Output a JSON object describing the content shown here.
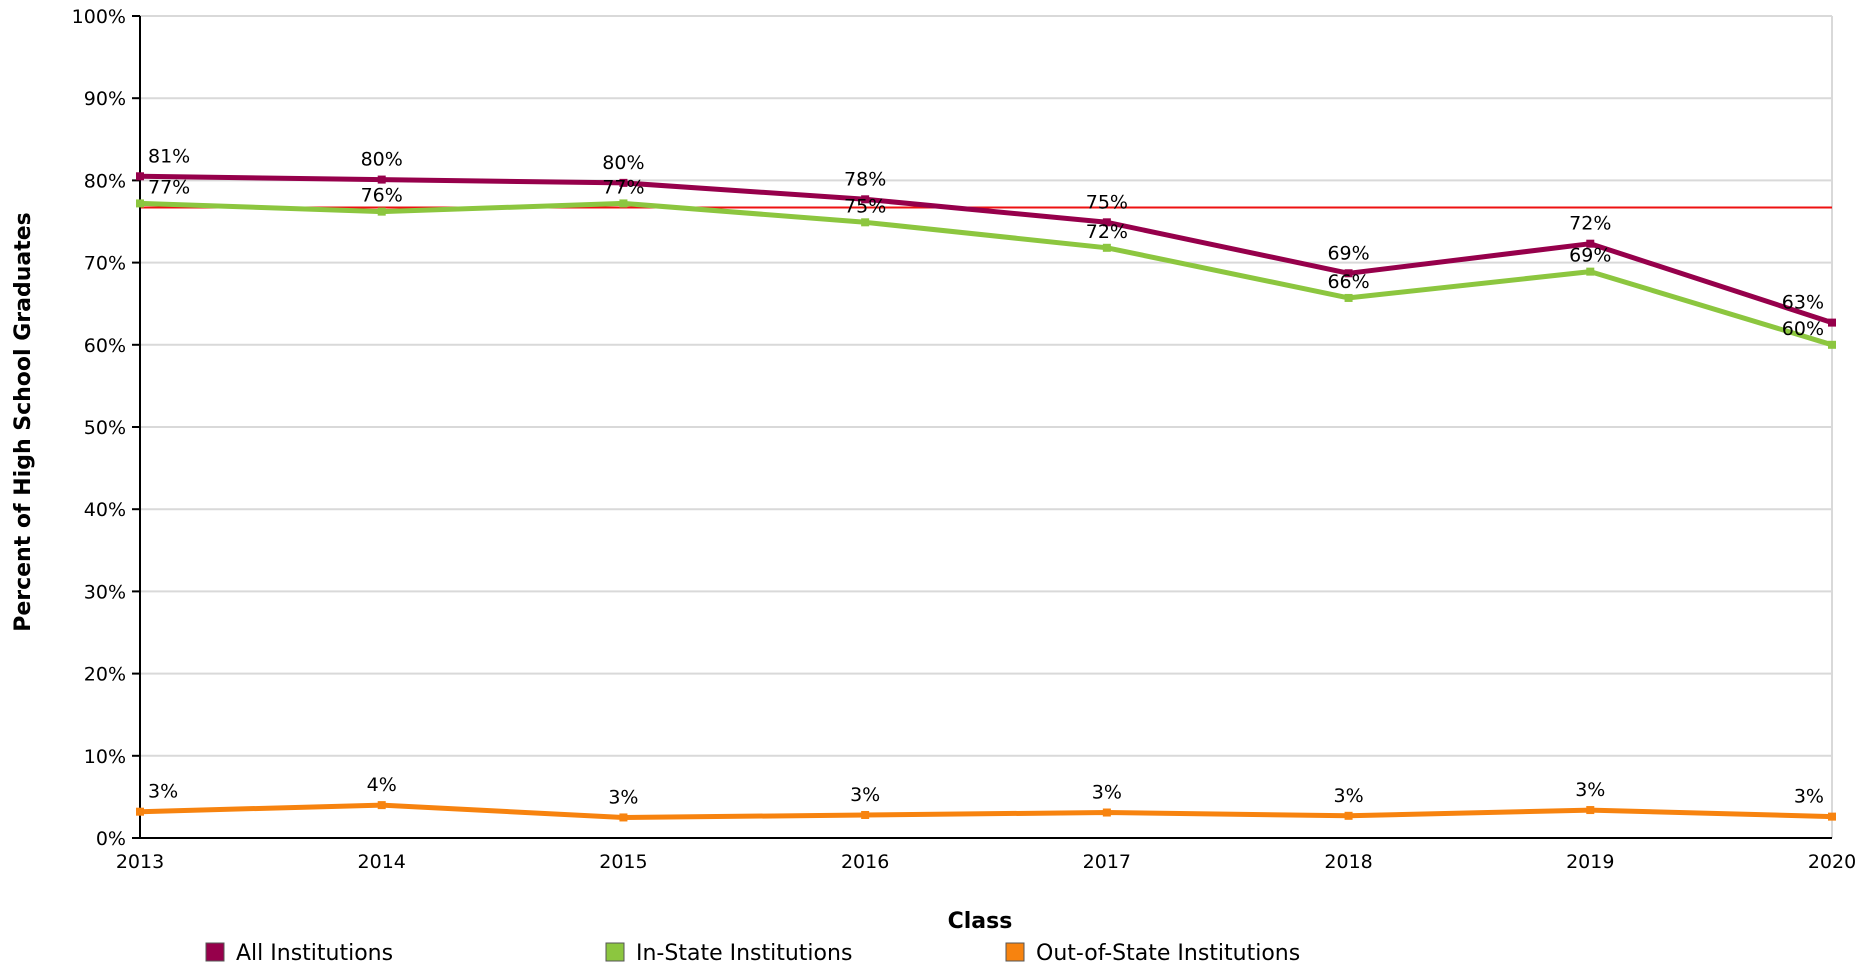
{
  "chart_data": {
    "type": "line",
    "xlabel": "Class",
    "ylabel": "Percent of High School Graduates",
    "ylim": [
      0,
      100
    ],
    "ytick_step": 10,
    "ytick_suffix": "%",
    "grid": true,
    "legend_position": "bottom",
    "categories": [
      "2013",
      "2014",
      "2015",
      "2016",
      "2017",
      "2018",
      "2019",
      "2020"
    ],
    "reference_line": {
      "value": 76.7,
      "color": "#ee1111"
    },
    "series": [
      {
        "name": "All Institutions",
        "color": "#96004b",
        "values": [
          80.5,
          80.1,
          79.7,
          77.7,
          74.9,
          68.7,
          72.3,
          62.7
        ],
        "labels": [
          "81%",
          "80%",
          "80%",
          "78%",
          "75%",
          "69%",
          "72%",
          "63%"
        ]
      },
      {
        "name": "In-State Institutions",
        "color": "#8cc63f",
        "values": [
          77.2,
          76.2,
          77.2,
          74.9,
          71.8,
          65.7,
          68.9,
          60.0
        ],
        "labels": [
          "77%",
          "76%",
          "77%",
          "75%",
          "72%",
          "66%",
          "69%",
          "60%"
        ]
      },
      {
        "name": "Out-of-State Institutions",
        "color": "#f7830f",
        "values": [
          3.2,
          4.0,
          2.5,
          2.8,
          3.1,
          2.7,
          3.4,
          2.6
        ],
        "labels": [
          "3%",
          "4%",
          "3%",
          "3%",
          "3%",
          "3%",
          "3%",
          "3%"
        ]
      }
    ]
  }
}
